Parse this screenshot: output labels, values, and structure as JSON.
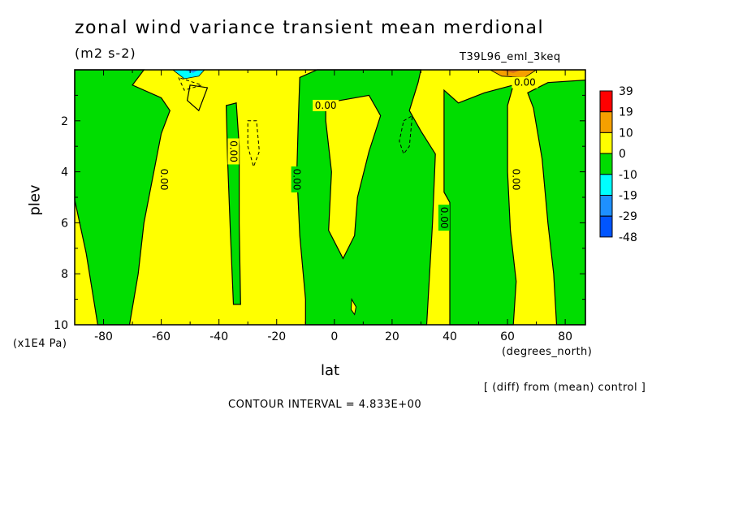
{
  "chart_data": {
    "type": "heatmap",
    "title": "zonal wind variance transient mean merdional",
    "units": "(m2 s-2)",
    "run_label": "T39L96_eml_3keq",
    "xlabel": "lat",
    "x_unit": "(degrees_north)",
    "ylabel": "plev",
    "y_unit": "(x1E4 Pa)",
    "xlim": [
      -90,
      87
    ],
    "ylim": [
      10,
      0
    ],
    "x_ticks": [
      -80,
      -60,
      -40,
      -20,
      0,
      20,
      40,
      60,
      80
    ],
    "x_tick_labels": [
      "-80",
      "-60",
      "-40",
      "-20",
      "0",
      "20",
      "40",
      "60",
      "80"
    ],
    "y_ticks": [
      2,
      4,
      6,
      8,
      10
    ],
    "y_tick_labels": [
      "2",
      "4",
      "6",
      "8",
      "10"
    ],
    "colorbar": {
      "labels": [
        "39",
        "19",
        "10",
        "0",
        "-10",
        "-19",
        "-29",
        "-48"
      ],
      "colors": [
        "#ff0000",
        "#f5a000",
        "#ffff00",
        "#00dd00",
        "#00ffff",
        "#1e90ff",
        "#0055ff"
      ]
    },
    "contour_labels": [
      {
        "text": "0.00",
        "lat": -59,
        "plev": 4.3
      },
      {
        "text": "0.00",
        "lat": -35,
        "plev": 3.2
      },
      {
        "text": "0.00",
        "lat": -13,
        "plev": 4.3
      },
      {
        "text": "0.00",
        "lat": -3,
        "plev": 1.4
      },
      {
        "text": "0.00",
        "lat": 38,
        "plev": 5.8
      },
      {
        "text": "0.00",
        "lat": 63,
        "plev": 4.3
      },
      {
        "text": "0.00",
        "lat": 66,
        "plev": 0.5
      }
    ],
    "contour_interval_text": "CONTOUR INTERVAL = 4.833E+00",
    "note": "[ (diff) from (mean) control ]",
    "regions": [
      {
        "level": "0 to 10",
        "color": "#ffff00",
        "lat_range": [
          -90,
          87
        ],
        "plev_range": [
          0,
          10
        ],
        "role": "background"
      },
      {
        "level": "-10 to 0",
        "color": "#00dd00",
        "description": "high-latitude southern band",
        "lat_range": [
          -90,
          -66
        ]
      },
      {
        "level": "-10 to 0",
        "color": "#00dd00",
        "description": "column near 40S",
        "lat_range": [
          -38,
          -33
        ]
      },
      {
        "level": "-10 to 0",
        "color": "#00dd00",
        "description": "equatorial column",
        "lat_range": [
          -12,
          30
        ]
      },
      {
        "level": "-10 to 0",
        "color": "#00dd00",
        "description": "column 40N to 60N",
        "lat_range": [
          38,
          62
        ]
      },
      {
        "level": "-10 to 0",
        "color": "#00dd00",
        "description": "high-latitude northern band",
        "lat_range": [
          70,
          87
        ]
      },
      {
        "level": "-19 to -10",
        "color": "#00ffff",
        "description": "small upper-level patch near 50S",
        "lat_range": [
          -55,
          -45
        ]
      },
      {
        "level": "10 to 19",
        "color": "#f5a000",
        "description": "small upper-level patch near 60N",
        "lat_range": [
          55,
          68
        ]
      }
    ]
  }
}
